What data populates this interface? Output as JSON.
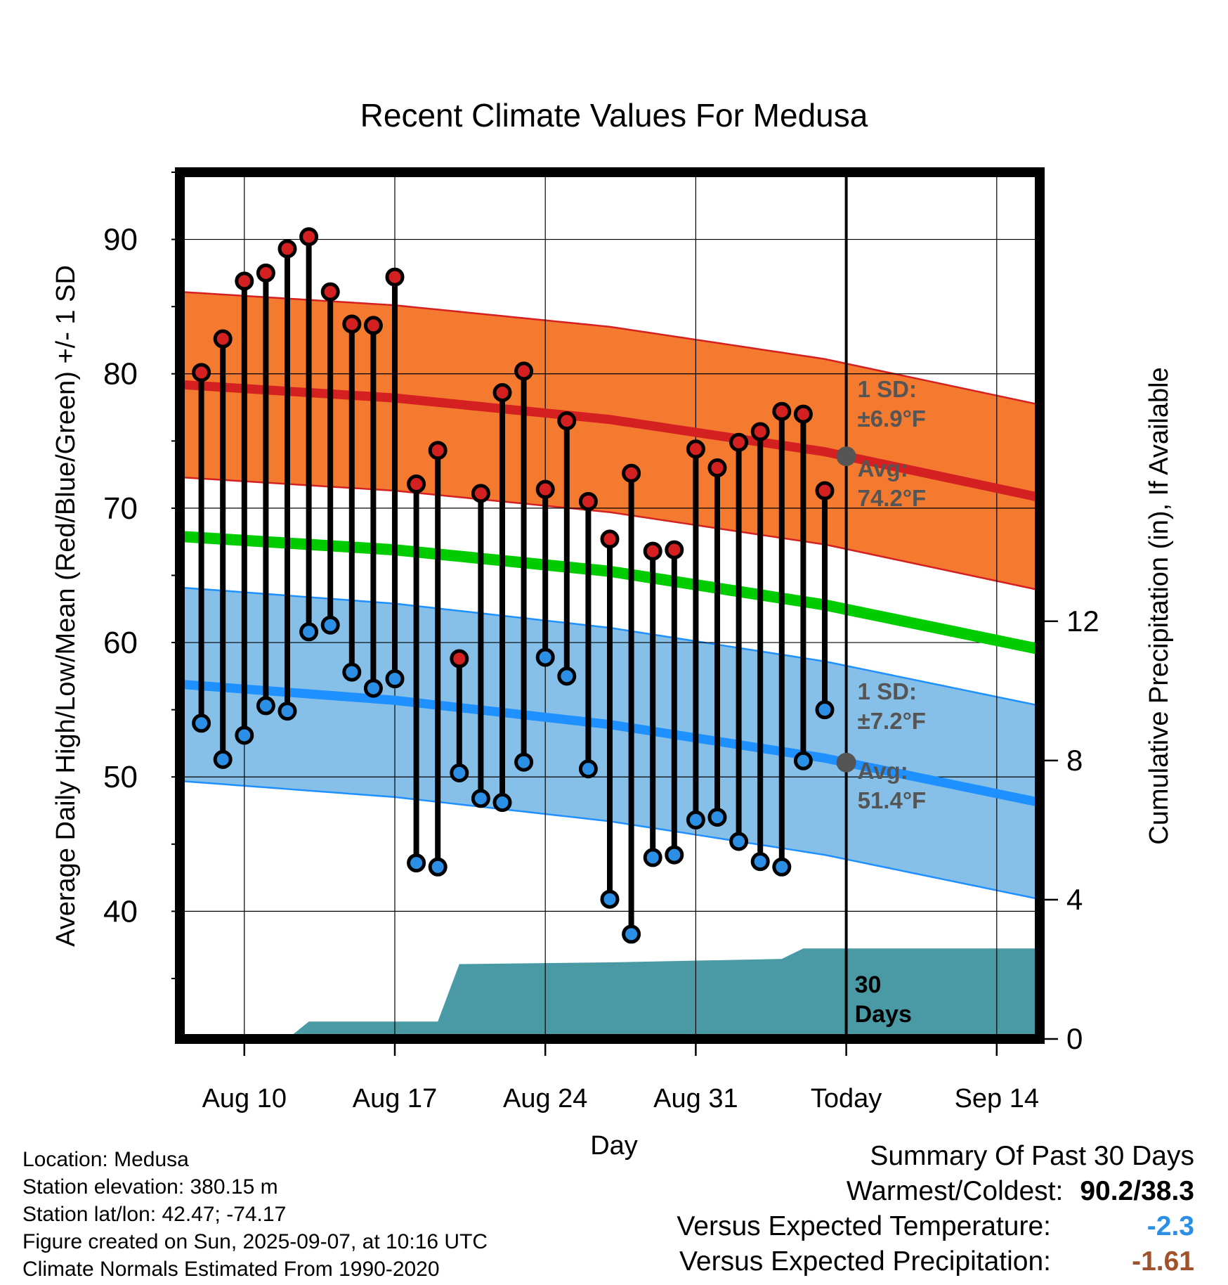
{
  "chart_data": {
    "type": "line",
    "title": "Recent Climate Values For Medusa",
    "xlabel": "Day",
    "ylabel": "Average Daily High/Low/Mean (Red/Blue/Green) +/- 1 SD",
    "ylabel_right": "Cumulative Precipitation (in), If Available",
    "x_ticks": [
      "Aug 10",
      "Aug 17",
      "Aug 24",
      "Aug 31",
      "Today",
      "Sep 14"
    ],
    "y_ticks": [
      40,
      50,
      60,
      70,
      80,
      90
    ],
    "y2_ticks": [
      0,
      4,
      8,
      12
    ],
    "ylim": [
      30.5,
      95
    ],
    "y2lim": [
      0,
      24.9
    ],
    "xlim_days": [
      "2025-08-07",
      "2025-09-16"
    ],
    "daily_high": [
      80.1,
      82.6,
      86.9,
      87.5,
      89.3,
      90.2,
      86.1,
      83.7,
      83.6,
      87.2,
      71.8,
      74.3,
      58.8,
      71.1,
      78.6,
      80.2,
      71.4,
      76.5,
      70.5,
      67.7,
      72.6,
      66.8,
      66.9,
      74.4,
      73.0,
      74.9,
      75.7,
      77.2,
      77.0,
      71.3
    ],
    "daily_low": [
      54.0,
      51.3,
      53.1,
      55.3,
      54.9,
      60.8,
      61.3,
      57.8,
      56.6,
      57.3,
      43.6,
      43.3,
      50.3,
      48.4,
      48.1,
      51.1,
      58.9,
      57.5,
      50.6,
      40.9,
      38.3,
      44.0,
      44.2,
      46.8,
      47.0,
      45.2,
      43.7,
      43.3,
      51.2,
      55.0
    ],
    "series": [
      {
        "name": "Normal High",
        "color": "#d42020",
        "dates": [
          "2025-08-07",
          "2025-08-17",
          "2025-08-27",
          "2025-09-06",
          "2025-09-16"
        ],
        "values": [
          79.2,
          78.2,
          76.6,
          74.2,
          70.8
        ],
        "sd": 6.9
      },
      {
        "name": "Normal Low",
        "color": "#1e90ff",
        "dates": [
          "2025-08-07",
          "2025-08-17",
          "2025-08-27",
          "2025-09-06",
          "2025-09-16"
        ],
        "values": [
          56.9,
          55.7,
          53.9,
          51.4,
          48.1
        ],
        "sd": 7.2
      },
      {
        "name": "Normal Mean",
        "color": "#00cc00",
        "dates": [
          "2025-08-07",
          "2025-08-17",
          "2025-08-27",
          "2025-09-06",
          "2025-09-16"
        ],
        "values": [
          67.9,
          66.9,
          65.3,
          62.8,
          59.5
        ]
      }
    ],
    "precip_cumulative": {
      "dates": [
        "2025-08-07",
        "2025-08-12",
        "2025-08-13",
        "2025-08-19",
        "2025-08-20",
        "2025-08-27",
        "2025-09-04",
        "2025-09-05",
        "2025-09-16"
      ],
      "values": [
        0,
        0,
        0.5,
        0.5,
        2.15,
        2.2,
        2.3,
        2.6,
        2.6
      ],
      "color": "#4a9aa5"
    },
    "annotations": {
      "high_sd": "1 SD:",
      "high_sd_value": "±6.9°F",
      "high_avg": "Avg:",
      "high_avg_value": "74.2°F",
      "low_sd": "1 SD:",
      "low_sd_value": "±7.2°F",
      "low_avg": "Avg:",
      "low_avg_value": "51.4°F",
      "window_line1": "30",
      "window_line2": "Days"
    },
    "grid": true
  },
  "footer": {
    "location": "Location: Medusa",
    "elevation": "Station elevation: 380.15 m",
    "latlon": "Station lat/lon: 42.47; -74.17",
    "created": "Figure created on Sun, 2025-09-07, at 10:16 UTC",
    "normals": "Climate Normals Estimated From 1990-2020"
  },
  "summary": {
    "heading": "Summary Of Past 30 Days",
    "warm_cold_label": "Warmest/Coldest:",
    "warm_cold_value": "90.2/38.3",
    "temp_label": "Versus Expected Temperature:",
    "temp_value": "-2.3",
    "temp_color": "#2b8fe6",
    "precip_label": "Versus Expected Precipitation:",
    "precip_value": "-1.61",
    "precip_color": "#a0522d"
  }
}
